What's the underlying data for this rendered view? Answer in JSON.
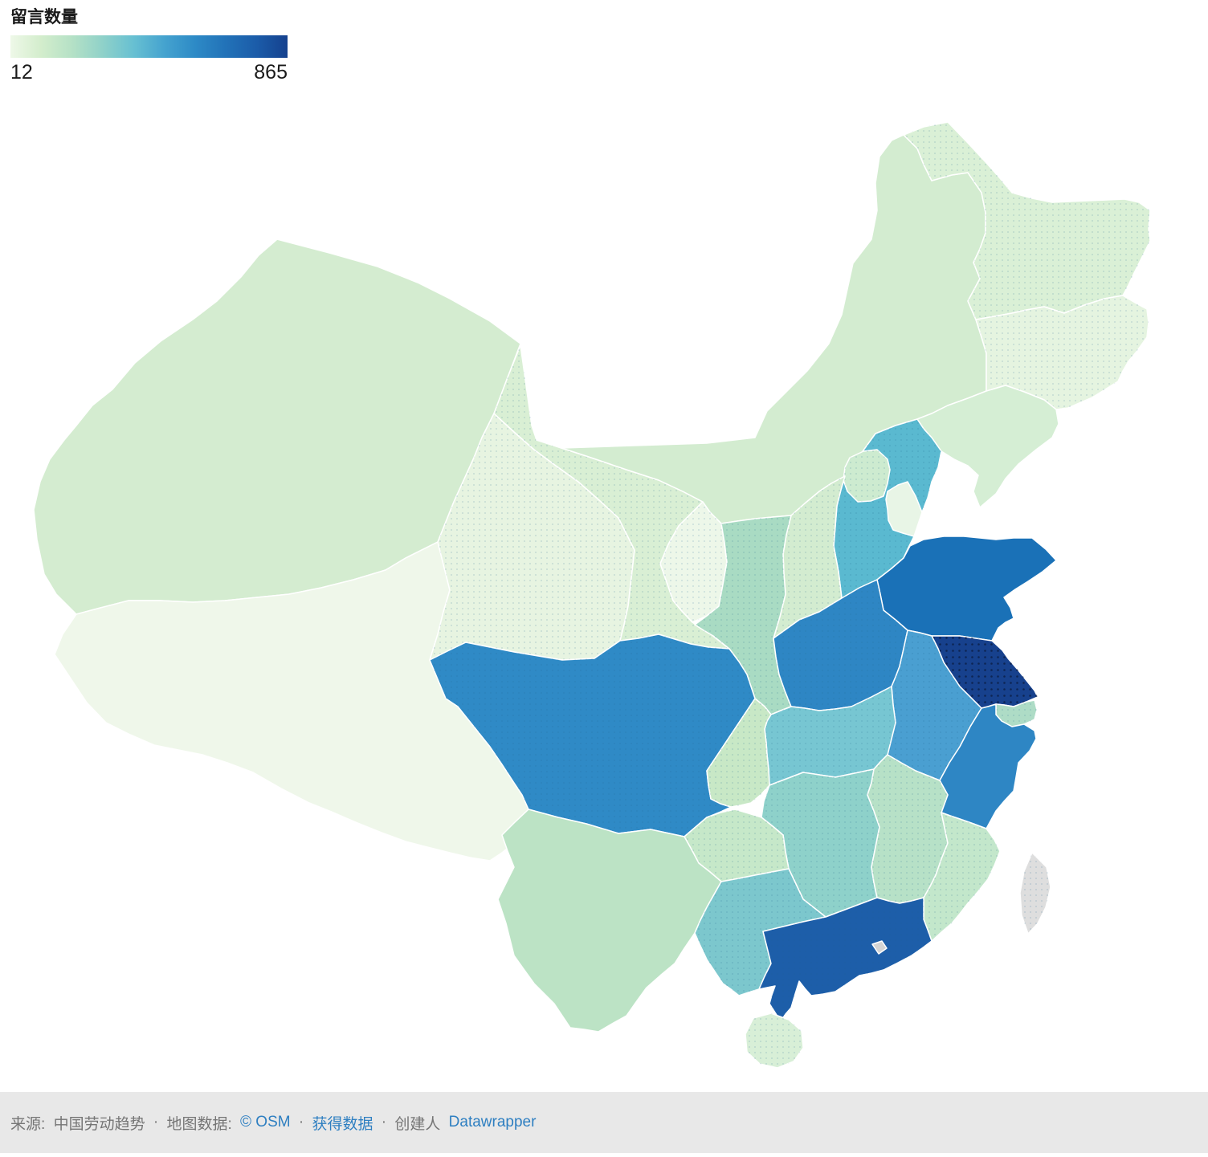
{
  "legend": {
    "title": "留言数量",
    "min_label": "12",
    "max_label": "865",
    "gradient": [
      "#eef8e8",
      "#d3edcc",
      "#b5e1c6",
      "#8fd1c9",
      "#67c0d2",
      "#45a3cf",
      "#2d8ac6",
      "#2272b8",
      "#1b5ca9",
      "#15418e"
    ]
  },
  "footer": {
    "background": "#e8e8e8",
    "text_color": "#757575",
    "link_color": "#2e7fc1",
    "source_prefix": "来源: ",
    "source_name": "中国劳动趋势",
    "sep1": " · ",
    "map_data_prefix": "地图数据: ",
    "osm_link": "© OSM",
    "sep2": " · ",
    "data_link": "获得数据",
    "sep3": " · ",
    "creator_prefix": "创建人 ",
    "creator_link": "Datawrapper"
  },
  "chart_data": {
    "type": "choropleth",
    "region": "China provinces",
    "title": "留言数量",
    "legend": {
      "min": 12,
      "max": 865
    },
    "border_color": "#ffffff",
    "no_data_color": "#dedede",
    "provinces": [
      {
        "key": "xinjiang",
        "name": "Xinjiang",
        "name_zh": "新疆",
        "color": "#d4ecd0",
        "dots": false
      },
      {
        "key": "tibet",
        "name": "Tibet",
        "name_zh": "西藏",
        "color": "#eff7ea",
        "dots": false
      },
      {
        "key": "qinghai",
        "name": "Qinghai",
        "name_zh": "青海",
        "color": "#e7f4e1",
        "dots": true
      },
      {
        "key": "gansu",
        "name": "Gansu",
        "name_zh": "甘肃",
        "color": "#d9efd4",
        "dots": true
      },
      {
        "key": "inner-mongolia",
        "name": "Inner Mongolia",
        "name_zh": "内蒙古",
        "color": "#d3ecd0",
        "dots": false
      },
      {
        "key": "ningxia",
        "name": "Ningxia",
        "name_zh": "宁夏",
        "color": "#edf7e9",
        "dots": true
      },
      {
        "key": "heilongjiang",
        "name": "Heilongjiang",
        "name_zh": "黑龙江",
        "color": "#daf0d6",
        "dots": true
      },
      {
        "key": "jilin",
        "name": "Jilin",
        "name_zh": "吉林",
        "color": "#e5f4e0",
        "dots": true
      },
      {
        "key": "liaoning",
        "name": "Liaoning",
        "name_zh": "辽宁",
        "color": "#d5eed4",
        "dots": false
      },
      {
        "key": "hebei",
        "name": "Hebei",
        "name_zh": "河北",
        "color": "#5ab9d0",
        "dots": true
      },
      {
        "key": "beijing",
        "name": "Beijing",
        "name_zh": "北京",
        "color": "#cdebd0",
        "dots": true
      },
      {
        "key": "tianjin",
        "name": "Tianjin",
        "name_zh": "天津",
        "color": "#e8f5e6",
        "dots": false
      },
      {
        "key": "shanxi",
        "name": "Shanxi",
        "name_zh": "山西",
        "color": "#d3ecd0",
        "dots": true
      },
      {
        "key": "shaanxi",
        "name": "Shaanxi",
        "name_zh": "陕西",
        "color": "#a9dbc3",
        "dots": true
      },
      {
        "key": "shandong",
        "name": "Shandong",
        "name_zh": "山东",
        "color": "#1a71b7",
        "dots": false
      },
      {
        "key": "henan",
        "name": "Henan",
        "name_zh": "河南",
        "color": "#2e86c4",
        "dots": true
      },
      {
        "key": "jiangsu",
        "name": "Jiangsu",
        "name_zh": "江苏",
        "color": "#17418d",
        "dots": "strong"
      },
      {
        "key": "anhui",
        "name": "Anhui",
        "name_zh": "安徽",
        "color": "#4a9fd1",
        "dots": true
      },
      {
        "key": "shanghai",
        "name": "Shanghai",
        "name_zh": "上海",
        "color": "#aedcc6",
        "dots": true
      },
      {
        "key": "zhejiang",
        "name": "Zhejiang",
        "name_zh": "浙江",
        "color": "#2e86c4",
        "dots": false
      },
      {
        "key": "hubei",
        "name": "Hubei",
        "name_zh": "湖北",
        "color": "#77c6d2",
        "dots": true
      },
      {
        "key": "sichuan",
        "name": "Sichuan",
        "name_zh": "四川",
        "color": "#2f8ac6",
        "dots": true
      },
      {
        "key": "chongqing",
        "name": "Chongqing",
        "name_zh": "重庆",
        "color": "#c8e8c6",
        "dots": true
      },
      {
        "key": "hunan",
        "name": "Hunan",
        "name_zh": "湖南",
        "color": "#8ed1ca",
        "dots": true
      },
      {
        "key": "jiangxi",
        "name": "Jiangxi",
        "name_zh": "江西",
        "color": "#b7e1c7",
        "dots": true
      },
      {
        "key": "fujian",
        "name": "Fujian",
        "name_zh": "福建",
        "color": "#c3e7cb",
        "dots": true
      },
      {
        "key": "guizhou",
        "name": "Guizhou",
        "name_zh": "贵州",
        "color": "#c6e8c9",
        "dots": true
      },
      {
        "key": "yunnan",
        "name": "Yunnan",
        "name_zh": "云南",
        "color": "#bce3c5",
        "dots": false
      },
      {
        "key": "guangxi",
        "name": "Guangxi",
        "name_zh": "广西",
        "color": "#7cc7cd",
        "dots": true
      },
      {
        "key": "guangdong",
        "name": "Guangdong",
        "name_zh": "广东",
        "color": "#1d5ea9",
        "dots": true
      },
      {
        "key": "hongkong",
        "name": "Hong Kong",
        "name_zh": "香港",
        "color": "#d4d4d4",
        "dots": false
      },
      {
        "key": "hainan",
        "name": "Hainan",
        "name_zh": "海南",
        "color": "#d8efd7",
        "dots": true
      },
      {
        "key": "taiwan",
        "name": "Taiwan",
        "name_zh": "台湾",
        "color": "#dedede",
        "dots": true
      }
    ]
  }
}
